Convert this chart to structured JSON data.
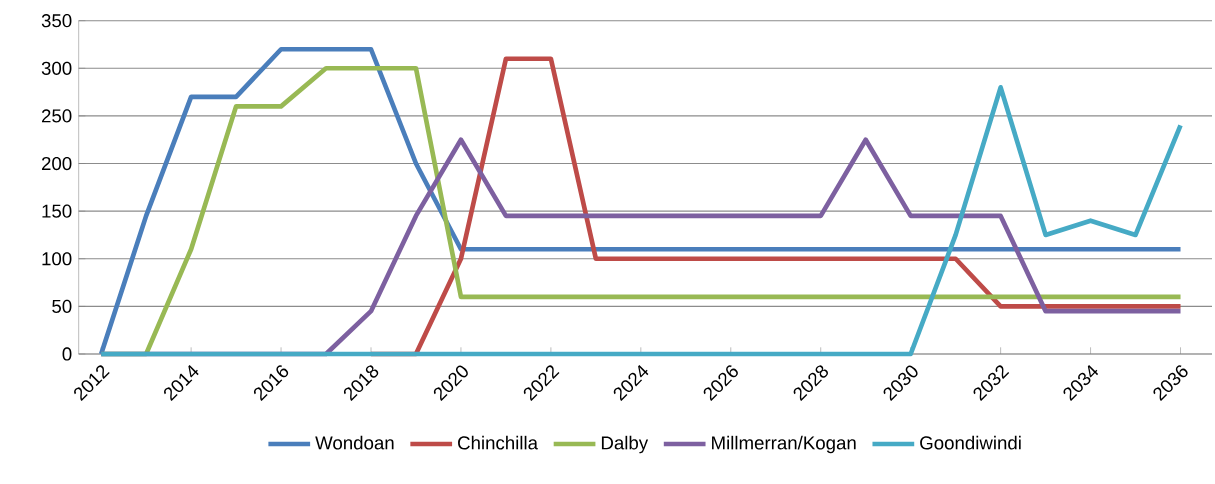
{
  "chart_data": {
    "type": "line",
    "categories": [
      "2012",
      null,
      "2014",
      null,
      "2016",
      null,
      "2018",
      null,
      "2020",
      null,
      "2022",
      null,
      "2024",
      null,
      "2026",
      null,
      "2028",
      null,
      "2030",
      null,
      "2032",
      null,
      "2034",
      null,
      "2036"
    ],
    "series": [
      {
        "name": "Wondoan",
        "color": "#4a7ebb",
        "values": [
          0,
          145,
          270,
          270,
          320,
          320,
          320,
          200,
          110,
          110,
          110,
          110,
          110,
          110,
          110,
          110,
          110,
          110,
          110,
          110,
          110,
          110,
          110,
          110,
          110
        ]
      },
      {
        "name": "Chinchilla",
        "color": "#be4b48",
        "values": [
          null,
          null,
          null,
          null,
          null,
          null,
          0,
          0,
          100,
          310,
          310,
          100,
          100,
          100,
          100,
          100,
          100,
          100,
          100,
          100,
          50,
          50,
          50,
          50,
          50
        ]
      },
      {
        "name": "Dalby",
        "color": "#98b954",
        "values": [
          0,
          0,
          110,
          260,
          260,
          300,
          300,
          300,
          60,
          60,
          60,
          60,
          60,
          60,
          60,
          60,
          60,
          60,
          60,
          60,
          60,
          60,
          60,
          60,
          60
        ]
      },
      {
        "name": "Millmerran/Kogan",
        "color": "#7d60a0",
        "values": [
          0,
          0,
          0,
          0,
          0,
          0,
          45,
          145,
          225,
          145,
          145,
          145,
          145,
          145,
          145,
          145,
          145,
          225,
          145,
          145,
          145,
          45,
          45,
          45,
          45
        ]
      },
      {
        "name": "Goondiwindi",
        "color": "#46aac5",
        "values": [
          0,
          0,
          0,
          0,
          0,
          0,
          0,
          0,
          0,
          0,
          0,
          0,
          0,
          0,
          0,
          0,
          0,
          0,
          0,
          125,
          280,
          125,
          140,
          125,
          240
        ]
      }
    ],
    "ylim": [
      0,
      350
    ],
    "yticks": [
      0,
      50,
      100,
      150,
      200,
      250,
      300,
      350
    ],
    "grid": "y",
    "legend": "bottom",
    "marker": "none",
    "line_style": "solid"
  }
}
